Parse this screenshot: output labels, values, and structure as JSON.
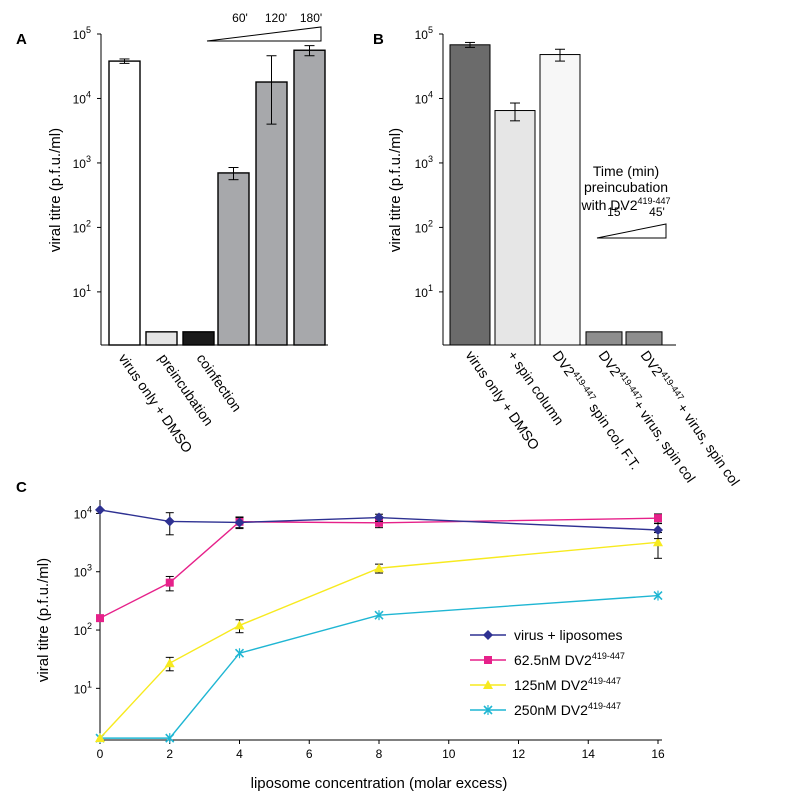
{
  "chart_data": [
    {
      "panel": "A",
      "type": "bar",
      "ylabel": "viral titre (p.f.u./ml)",
      "yscale": "log",
      "ylim": [
        1.5,
        100000
      ],
      "yticks": [
        {
          "value": 10,
          "label": "10",
          "exp": "1"
        },
        {
          "value": 100,
          "label": "10",
          "exp": "2"
        },
        {
          "value": 1000,
          "label": "10",
          "exp": "3"
        },
        {
          "value": 10000,
          "label": "10",
          "exp": "4"
        },
        {
          "value": 100000,
          "label": "10",
          "exp": "5"
        }
      ],
      "categories": [
        "virus only + DMSO",
        "preincubation",
        "coinfection",
        "",
        "",
        ""
      ],
      "values": [
        38000,
        2.4,
        2.4,
        700,
        18000,
        56000
      ],
      "errors": [
        3000,
        null,
        null,
        150,
        [
          14000,
          28000
        ],
        10000
      ],
      "colors": [
        "#ffffff",
        "#e4e4e4",
        "#1a1a1a",
        "#a7a8ab",
        "#a7a8ab",
        "#a7a8ab"
      ],
      "wedge_labels": [
        "60'",
        "120'",
        "180'"
      ]
    },
    {
      "panel": "B",
      "type": "bar",
      "ylabel": "viral titre (p.f.u./ml)",
      "yscale": "log",
      "ylim": [
        1.5,
        100000
      ],
      "yticks": [
        {
          "value": 10,
          "label": "10",
          "exp": "1"
        },
        {
          "value": 100,
          "label": "10",
          "exp": "2"
        },
        {
          "value": 1000,
          "label": "10",
          "exp": "3"
        },
        {
          "value": 10000,
          "label": "10",
          "exp": "4"
        },
        {
          "value": 100000,
          "label": "10",
          "exp": "5"
        }
      ],
      "categories": [
        {
          "main": "virus only + DMSO"
        },
        {
          "main": "+ spin column"
        },
        {
          "main": "DV2",
          "sup": "419-447",
          "rest": " spin col, F.T."
        },
        {
          "main": "DV2",
          "sup": "419-447",
          "rest": "+ virus, spin col"
        },
        {
          "main": "DV2",
          "sup": "419-447",
          "rest": " + virus, spin col"
        }
      ],
      "values": [
        68000,
        6500,
        48000,
        2.4,
        2.4
      ],
      "errors": [
        6000,
        2000,
        10000,
        null,
        null
      ],
      "colors": [
        "#6b6b6b",
        "#e6e6e6",
        "#f7f7f7",
        "#8e8e8e",
        "#8e8e8e"
      ],
      "annotation": {
        "line1": "Time (min)",
        "line2": "preincubation",
        "line3_main": "with DV2",
        "line3_sup": "419-447",
        "wedge_labels": [
          "15'",
          "45'"
        ]
      }
    },
    {
      "panel": "C",
      "type": "line",
      "xlabel": "liposome concentration (molar excess)",
      "ylabel": "viral titre (p.f.u./ml)",
      "yscale": "log",
      "ylim": [
        1.3,
        17000
      ],
      "xlim": [
        0,
        16
      ],
      "xticks": [
        0,
        2,
        4,
        6,
        8,
        10,
        12,
        14,
        16
      ],
      "yticks": [
        {
          "value": 10,
          "label": "10",
          "exp": "1"
        },
        {
          "value": 100,
          "label": "10",
          "exp": "2"
        },
        {
          "value": 1000,
          "label": "10",
          "exp": "3"
        },
        {
          "value": 10000,
          "label": "10",
          "exp": "4"
        }
      ],
      "x": [
        0,
        2,
        4,
        8,
        16
      ],
      "series": [
        {
          "name": "virus + liposomes",
          "sup": "",
          "color": "#2e3192",
          "marker": "diamond",
          "values": [
            11500,
            7300,
            7000,
            8500,
            5200
          ],
          "errors": [
            null,
            3000,
            1500,
            1200,
            1500
          ]
        },
        {
          "name": "62.5nM DV2",
          "sup": "419-447",
          "color": "#e6218a",
          "marker": "square",
          "values": [
            160,
            650,
            7200,
            6900,
            8300
          ],
          "errors": [
            null,
            180,
            1500,
            1200,
            1500
          ]
        },
        {
          "name": "125nM  DV2",
          "sup": "419-447",
          "color": "#f7ea1f",
          "marker": "triangle",
          "values": [
            1.4,
            27,
            120,
            1150,
            3200
          ],
          "errors": [
            null,
            7,
            30,
            200,
            1500
          ]
        },
        {
          "name": "250nM  DV2",
          "sup": "419-447",
          "color": "#1fb6d3",
          "marker": "x",
          "values": [
            1.4,
            1.4,
            40,
            180,
            390
          ],
          "errors": [
            null,
            null,
            null,
            null,
            null
          ]
        }
      ],
      "legend_position": "bottom-right"
    }
  ]
}
